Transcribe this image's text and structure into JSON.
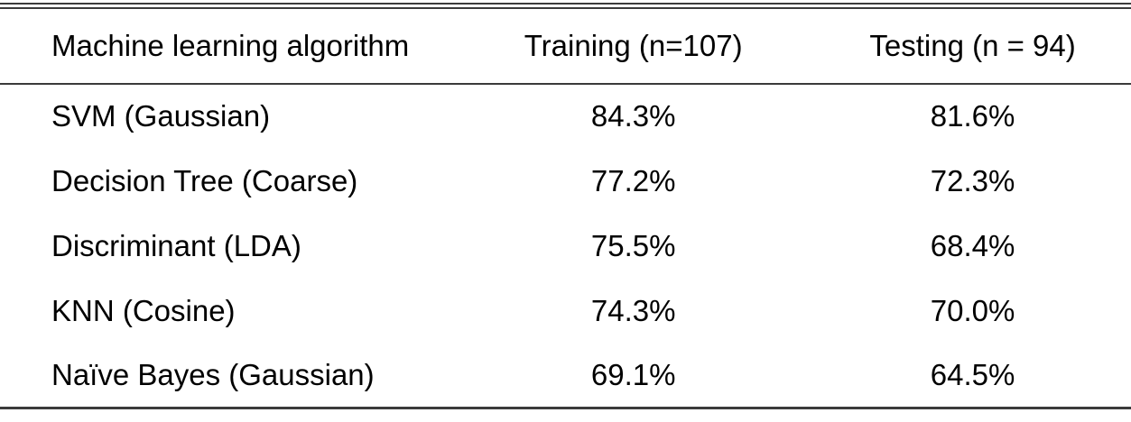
{
  "table": {
    "columns": [
      {
        "key": "algorithm",
        "label": "Machine learning algorithm"
      },
      {
        "key": "training",
        "label": "Training (n=107)"
      },
      {
        "key": "testing",
        "label": "Testing (n = 94)"
      }
    ],
    "rows": [
      {
        "algorithm": "SVM (Gaussian)",
        "training": "84.3%",
        "testing": "81.6%"
      },
      {
        "algorithm": "Decision Tree (Coarse)",
        "training": "77.2%",
        "testing": "72.3%"
      },
      {
        "algorithm": "Discriminant (LDA)",
        "training": "75.5%",
        "testing": "68.4%"
      },
      {
        "algorithm": "KNN (Cosine)",
        "training": "74.3%",
        "testing": "70.0%"
      },
      {
        "algorithm": "Naïve Bayes (Gaussian)",
        "training": "69.1%",
        "testing": "64.5%"
      }
    ]
  },
  "chart_data": {
    "type": "table",
    "title": "",
    "categories": [
      "SVM (Gaussian)",
      "Decision Tree (Coarse)",
      "Discriminant (LDA)",
      "KNN (Cosine)",
      "Naïve Bayes (Gaussian)"
    ],
    "series": [
      {
        "name": "Training (n=107)",
        "values": [
          84.3,
          77.2,
          75.5,
          74.3,
          69.1
        ],
        "unit": "%"
      },
      {
        "name": "Testing (n = 94)",
        "values": [
          81.6,
          72.3,
          68.4,
          70.0,
          64.5
        ],
        "unit": "%"
      }
    ]
  },
  "colors": {
    "rule": "#3b3b3b",
    "text": "#000000",
    "background": "#ffffff"
  }
}
